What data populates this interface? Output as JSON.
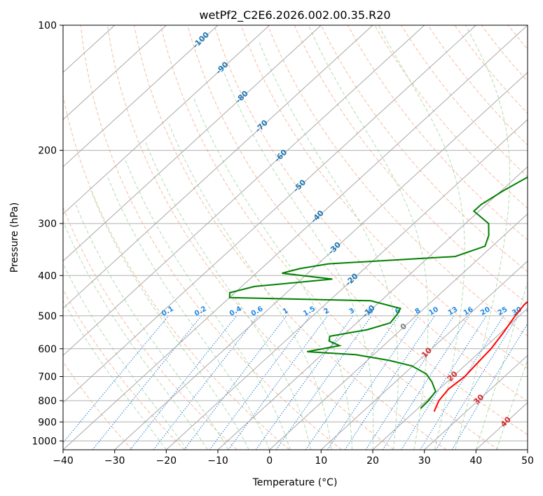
{
  "chart_data": {
    "type": "line",
    "subtype": "skew-T log-P diagram",
    "title": "wetPf2_C2E6.2026.002.00.35.R20",
    "xlabel": "Temperature (°C)",
    "ylabel": "Pressure (hPa)",
    "xlim": [
      -40,
      50
    ],
    "ylim": [
      1050,
      100
    ],
    "x_ticks": [
      "−40",
      "−30",
      "−20",
      "−10",
      "0",
      "10",
      "20",
      "30",
      "40",
      "50"
    ],
    "x_tick_values": [
      -40,
      -30,
      -20,
      -10,
      0,
      10,
      20,
      30,
      40,
      50
    ],
    "y_ticks": [
      "100",
      "200",
      "300",
      "400",
      "500",
      "600",
      "700",
      "800",
      "900",
      "1000"
    ],
    "y_tick_values": [
      100,
      200,
      300,
      400,
      500,
      600,
      700,
      800,
      900,
      1000
    ],
    "grid": true,
    "skew_deg_per_decade_note": "isotherms slant up-right",
    "isotherm_labels": [
      "-100",
      "-90",
      "-80",
      "-70",
      "-60",
      "-50",
      "-40",
      "-30",
      "-20",
      "-10",
      "0",
      "10",
      "20",
      "30",
      "40"
    ],
    "mixing_ratio_labels": [
      "0.1",
      "0.2",
      "0.4",
      "0.6",
      "1",
      "1.5",
      "2",
      "3",
      "4",
      "6",
      "8",
      "10",
      "13",
      "16",
      "20",
      "25",
      "30",
      "36"
    ],
    "mixing_ratio_values": [
      0.1,
      0.2,
      0.4,
      0.6,
      1,
      1.5,
      2,
      3,
      4,
      6,
      8,
      10,
      13,
      16,
      20,
      25,
      30,
      36
    ],
    "series": [
      {
        "name": "Temperature",
        "color": "#ff0000",
        "points": [
          [
            850,
            23.8
          ],
          [
            800,
            22.4
          ],
          [
            750,
            21.8
          ],
          [
            700,
            22.3
          ],
          [
            650,
            21.9
          ],
          [
            600,
            21.5
          ],
          [
            550,
            20.5
          ],
          [
            500,
            19.2
          ],
          [
            470,
            18.6
          ],
          [
            440,
            18.8
          ],
          [
            410,
            20.0
          ],
          [
            390,
            20.1
          ],
          [
            370,
            18.5
          ],
          [
            340,
            17.3
          ],
          [
            300,
            15.2
          ],
          [
            260,
            12.3
          ],
          [
            230,
            8.8
          ],
          [
            200,
            5.0
          ],
          [
            180,
            2.0
          ],
          [
            160,
            -1.5
          ],
          [
            145,
            -5.0
          ],
          [
            130,
            -8.5
          ],
          [
            122,
            -9.0
          ],
          [
            115,
            -6.6
          ],
          [
            108,
            -4.8
          ],
          [
            100,
            -4.0
          ]
        ]
      },
      {
        "name": "Dewpoint",
        "color": "#008000",
        "points": [
          [
            835,
            20.5
          ],
          [
            800,
            20.4
          ],
          [
            760,
            19.8
          ],
          [
            720,
            17.0
          ],
          [
            690,
            14.3
          ],
          [
            660,
            9.8
          ],
          [
            640,
            4.2
          ],
          [
            620,
            -3.5
          ],
          [
            610,
            -13.5
          ],
          [
            590,
            -8.5
          ],
          [
            575,
            -11.5
          ],
          [
            560,
            -12.4
          ],
          [
            540,
            -6.5
          ],
          [
            520,
            -3.5
          ],
          [
            495,
            -4.0
          ],
          [
            480,
            -4.6
          ],
          [
            460,
            -12.0
          ],
          [
            452,
            -40.0
          ],
          [
            440,
            -41.0
          ],
          [
            425,
            -37.5
          ],
          [
            408,
            -24.0
          ],
          [
            395,
            -35.0
          ],
          [
            385,
            -32.5
          ],
          [
            375,
            -28.0
          ],
          [
            360,
            -5.0
          ],
          [
            340,
            -1.4
          ],
          [
            320,
            -3.0
          ],
          [
            300,
            -5.5
          ],
          [
            280,
            -11.0
          ],
          [
            270,
            -11.0
          ],
          [
            250,
            -9.6
          ],
          [
            220,
            -6.5
          ],
          [
            200,
            -3.8
          ],
          [
            185,
            -7.6
          ],
          [
            175,
            -7.5
          ],
          [
            160,
            -11.0
          ],
          [
            145,
            -13.5
          ],
          [
            130,
            -19.0
          ],
          [
            115,
            -22.7
          ],
          [
            108,
            -23.0
          ],
          [
            100,
            -22.0
          ]
        ]
      }
    ]
  }
}
